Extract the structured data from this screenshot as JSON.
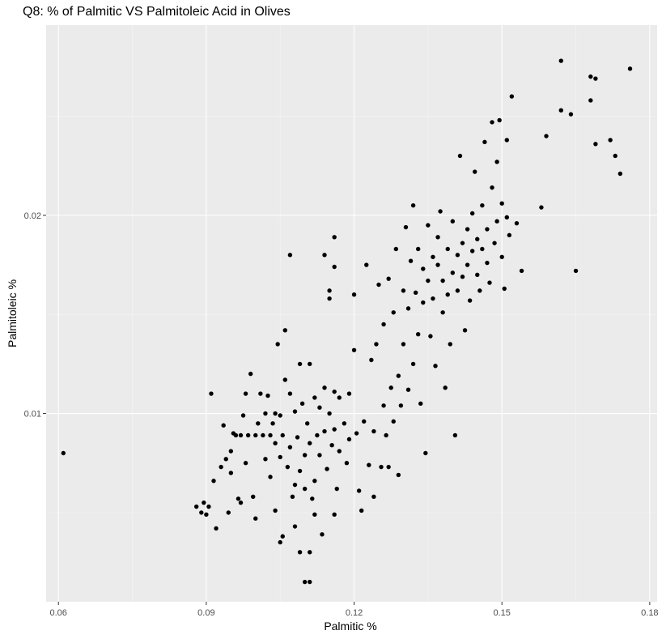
{
  "chart_data": {
    "type": "scatter",
    "title": "Q8: % of Palmitic VS Palmitoleic Acid in Olives",
    "xlabel": "Palmitic %",
    "ylabel": "Palmitoleic %",
    "xlim": [
      0.0575,
      0.1815
    ],
    "ylim": [
      0.0005,
      0.0296
    ],
    "xticks": [
      0.06,
      0.09,
      0.12,
      0.15,
      0.18
    ],
    "xtick_labels": [
      "0.06",
      "0.09",
      "0.12",
      "0.15",
      "0.18"
    ],
    "yticks": [
      0.01,
      0.02
    ],
    "ytick_labels": [
      "0.01",
      "0.02"
    ],
    "grid": true,
    "background": "#ebebeb",
    "point_color": "#000000",
    "points": [
      [
        0.061,
        0.008
      ],
      [
        0.088,
        0.0053
      ],
      [
        0.089,
        0.005
      ],
      [
        0.0895,
        0.0055
      ],
      [
        0.09,
        0.0049
      ],
      [
        0.0905,
        0.0053
      ],
      [
        0.091,
        0.011
      ],
      [
        0.0915,
        0.0066
      ],
      [
        0.092,
        0.0042
      ],
      [
        0.093,
        0.0073
      ],
      [
        0.0935,
        0.0094
      ],
      [
        0.094,
        0.0077
      ],
      [
        0.0945,
        0.005
      ],
      [
        0.095,
        0.007
      ],
      [
        0.095,
        0.0081
      ],
      [
        0.0955,
        0.009
      ],
      [
        0.096,
        0.0089
      ],
      [
        0.0965,
        0.0057
      ],
      [
        0.097,
        0.0055
      ],
      [
        0.097,
        0.0089
      ],
      [
        0.0975,
        0.0099
      ],
      [
        0.098,
        0.011
      ],
      [
        0.098,
        0.0075
      ],
      [
        0.0985,
        0.0089
      ],
      [
        0.099,
        0.012
      ],
      [
        0.0995,
        0.0058
      ],
      [
        0.1,
        0.0047
      ],
      [
        0.1,
        0.0089
      ],
      [
        0.1005,
        0.0095
      ],
      [
        0.101,
        0.011
      ],
      [
        0.1015,
        0.0089
      ],
      [
        0.102,
        0.01
      ],
      [
        0.102,
        0.0077
      ],
      [
        0.1025,
        0.0109
      ],
      [
        0.103,
        0.0089
      ],
      [
        0.103,
        0.0068
      ],
      [
        0.1035,
        0.0095
      ],
      [
        0.104,
        0.01
      ],
      [
        0.104,
        0.0085
      ],
      [
        0.1045,
        0.0135
      ],
      [
        0.105,
        0.0099
      ],
      [
        0.105,
        0.0078
      ],
      [
        0.1055,
        0.0038
      ],
      [
        0.1055,
        0.0089
      ],
      [
        0.106,
        0.0142
      ],
      [
        0.106,
        0.0117
      ],
      [
        0.1065,
        0.0073
      ],
      [
        0.107,
        0.011
      ],
      [
        0.107,
        0.0083
      ],
      [
        0.1075,
        0.0058
      ],
      [
        0.108,
        0.0101
      ],
      [
        0.108,
        0.0064
      ],
      [
        0.1085,
        0.0088
      ],
      [
        0.109,
        0.0125
      ],
      [
        0.109,
        0.0071
      ],
      [
        0.1095,
        0.0105
      ],
      [
        0.11,
        0.0079
      ],
      [
        0.11,
        0.0062
      ],
      [
        0.1105,
        0.0095
      ],
      [
        0.111,
        0.0125
      ],
      [
        0.111,
        0.0085
      ],
      [
        0.1115,
        0.0057
      ],
      [
        0.112,
        0.0108
      ],
      [
        0.112,
        0.0066
      ],
      [
        0.1125,
        0.0089
      ],
      [
        0.113,
        0.0103
      ],
      [
        0.113,
        0.0079
      ],
      [
        0.1135,
        0.0039
      ],
      [
        0.114,
        0.0113
      ],
      [
        0.114,
        0.0091
      ],
      [
        0.1145,
        0.0072
      ],
      [
        0.115,
        0.0158
      ],
      [
        0.115,
        0.01
      ],
      [
        0.1155,
        0.0084
      ],
      [
        0.116,
        0.0111
      ],
      [
        0.116,
        0.0092
      ],
      [
        0.1165,
        0.0062
      ],
      [
        0.117,
        0.0108
      ],
      [
        0.117,
        0.0081
      ],
      [
        0.118,
        0.0095
      ],
      [
        0.1185,
        0.0075
      ],
      [
        0.119,
        0.011
      ],
      [
        0.119,
        0.0087
      ],
      [
        0.12,
        0.0132
      ],
      [
        0.1205,
        0.009
      ],
      [
        0.121,
        0.0061
      ],
      [
        0.1215,
        0.0051
      ],
      [
        0.122,
        0.0096
      ],
      [
        0.1225,
        0.0175
      ],
      [
        0.123,
        0.0074
      ],
      [
        0.1235,
        0.0127
      ],
      [
        0.124,
        0.0091
      ],
      [
        0.1245,
        0.0135
      ],
      [
        0.125,
        0.0165
      ],
      [
        0.1255,
        0.0073
      ],
      [
        0.126,
        0.0104
      ],
      [
        0.126,
        0.0145
      ],
      [
        0.1265,
        0.0089
      ],
      [
        0.127,
        0.0168
      ],
      [
        0.1275,
        0.0113
      ],
      [
        0.128,
        0.0096
      ],
      [
        0.128,
        0.0151
      ],
      [
        0.1285,
        0.0183
      ],
      [
        0.129,
        0.0119
      ],
      [
        0.129,
        0.0069
      ],
      [
        0.1295,
        0.0104
      ],
      [
        0.13,
        0.0162
      ],
      [
        0.13,
        0.0135
      ],
      [
        0.1305,
        0.0194
      ],
      [
        0.131,
        0.0112
      ],
      [
        0.131,
        0.0153
      ],
      [
        0.1315,
        0.0177
      ],
      [
        0.132,
        0.0125
      ],
      [
        0.132,
        0.0205
      ],
      [
        0.1325,
        0.0161
      ],
      [
        0.133,
        0.014
      ],
      [
        0.133,
        0.0183
      ],
      [
        0.1335,
        0.0105
      ],
      [
        0.134,
        0.0156
      ],
      [
        0.134,
        0.0173
      ],
      [
        0.1345,
        0.008
      ],
      [
        0.135,
        0.0167
      ],
      [
        0.135,
        0.0195
      ],
      [
        0.1355,
        0.0139
      ],
      [
        0.136,
        0.0179
      ],
      [
        0.136,
        0.0158
      ],
      [
        0.1365,
        0.0124
      ],
      [
        0.137,
        0.0175
      ],
      [
        0.137,
        0.0189
      ],
      [
        0.1375,
        0.0202
      ],
      [
        0.138,
        0.0151
      ],
      [
        0.138,
        0.0167
      ],
      [
        0.1385,
        0.0113
      ],
      [
        0.139,
        0.0183
      ],
      [
        0.139,
        0.016
      ],
      [
        0.1395,
        0.0135
      ],
      [
        0.14,
        0.0171
      ],
      [
        0.14,
        0.0197
      ],
      [
        0.1405,
        0.0089
      ],
      [
        0.141,
        0.018
      ],
      [
        0.141,
        0.0162
      ],
      [
        0.1415,
        0.023
      ],
      [
        0.142,
        0.0186
      ],
      [
        0.142,
        0.0169
      ],
      [
        0.1425,
        0.0142
      ],
      [
        0.143,
        0.0175
      ],
      [
        0.143,
        0.0193
      ],
      [
        0.1435,
        0.0157
      ],
      [
        0.144,
        0.0182
      ],
      [
        0.144,
        0.0201
      ],
      [
        0.1445,
        0.0222
      ],
      [
        0.145,
        0.017
      ],
      [
        0.145,
        0.0188
      ],
      [
        0.1455,
        0.0162
      ],
      [
        0.146,
        0.0183
      ],
      [
        0.146,
        0.0205
      ],
      [
        0.1465,
        0.0237
      ],
      [
        0.147,
        0.0176
      ],
      [
        0.147,
        0.0193
      ],
      [
        0.1475,
        0.0166
      ],
      [
        0.148,
        0.0214
      ],
      [
        0.148,
        0.0247
      ],
      [
        0.1485,
        0.0186
      ],
      [
        0.149,
        0.0227
      ],
      [
        0.149,
        0.0197
      ],
      [
        0.1495,
        0.0248
      ],
      [
        0.15,
        0.0206
      ],
      [
        0.15,
        0.0179
      ],
      [
        0.1505,
        0.0163
      ],
      [
        0.151,
        0.0199
      ],
      [
        0.151,
        0.0238
      ],
      [
        0.1515,
        0.019
      ],
      [
        0.152,
        0.026
      ],
      [
        0.153,
        0.0196
      ],
      [
        0.154,
        0.0172
      ],
      [
        0.158,
        0.0204
      ],
      [
        0.159,
        0.024
      ],
      [
        0.162,
        0.0278
      ],
      [
        0.162,
        0.0253
      ],
      [
        0.164,
        0.0251
      ],
      [
        0.165,
        0.0172
      ],
      [
        0.168,
        0.0258
      ],
      [
        0.168,
        0.027
      ],
      [
        0.169,
        0.0269
      ],
      [
        0.169,
        0.0236
      ],
      [
        0.172,
        0.0238
      ],
      [
        0.173,
        0.023
      ],
      [
        0.174,
        0.0221
      ],
      [
        0.176,
        0.0274
      ],
      [
        0.109,
        0.003
      ],
      [
        0.111,
        0.003
      ],
      [
        0.11,
        0.0015
      ],
      [
        0.111,
        0.0015
      ],
      [
        0.105,
        0.0035
      ],
      [
        0.108,
        0.0043
      ],
      [
        0.104,
        0.0051
      ],
      [
        0.112,
        0.0049
      ],
      [
        0.116,
        0.0049
      ],
      [
        0.107,
        0.018
      ],
      [
        0.114,
        0.018
      ],
      [
        0.116,
        0.0189
      ],
      [
        0.12,
        0.016
      ],
      [
        0.127,
        0.0073
      ],
      [
        0.124,
        0.0058
      ],
      [
        0.115,
        0.0162
      ],
      [
        0.116,
        0.0174
      ]
    ]
  }
}
